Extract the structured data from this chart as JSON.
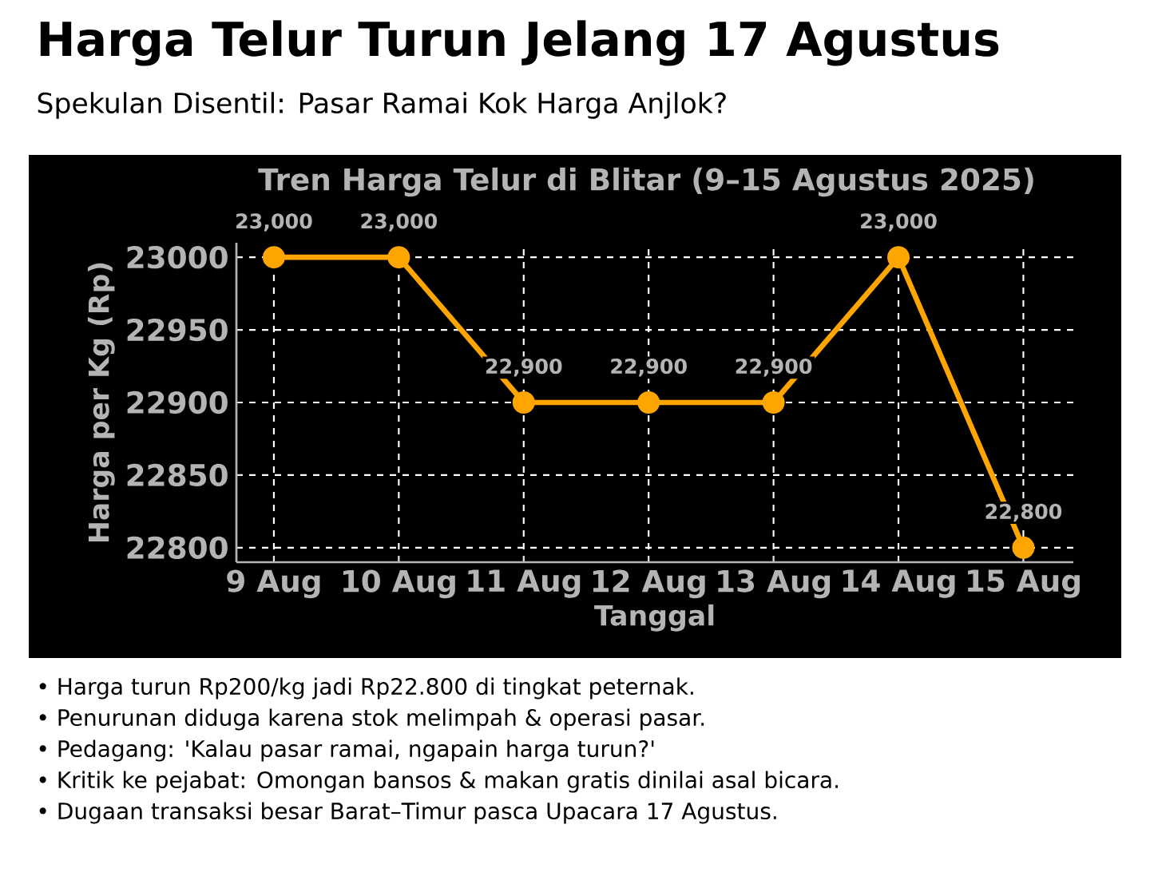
{
  "chart_data": {
    "type": "line",
    "title": "Harga Telur Turun Jelang 17 Agustus",
    "subtitle": "Spekulan Disentil: Pasar Ramai Kok Harga Anjlok?",
    "annotations": [
      "Tren Harga Telur di Blitar (9–15 Agustus 2025)",
      "• Harga turun Rp200/kg jadi Rp22.800 di tingkat peternak.",
      "• Penurunan diduga karena stok melimpah & operasi pasar.",
      "• Pedagang: 'Kalau pasar ramai, ngapain harga turun?'",
      "• Kritik ke pejabat: Omongan bansos & makan gratis dinilai asal bicara.",
      "• Dugaan transaksi besar Barat–Timur pasca Upacara 17 Agustus."
    ],
    "xlabel": "Tanggal",
    "ylabel": "Harga per Kg (Rp)",
    "categories": [
      "9 Aug",
      "10 Aug",
      "11 Aug",
      "12 Aug",
      "13 Aug",
      "14 Aug",
      "15 Aug"
    ],
    "series": [
      {
        "color": "#ffa500",
        "values": [
          23000,
          23000,
          22900,
          22900,
          22900,
          23000,
          22800
        ],
        "value_labels": [
          "23,000",
          "23,000",
          "22,900",
          "22,900",
          "22,900",
          "23,000",
          "22,800"
        ]
      }
    ],
    "ylim": [
      22790,
      23010
    ],
    "yticks": [
      22800,
      22850,
      22900,
      22950,
      23000
    ],
    "grid": true,
    "marker": "circle",
    "line_style": "solid"
  }
}
